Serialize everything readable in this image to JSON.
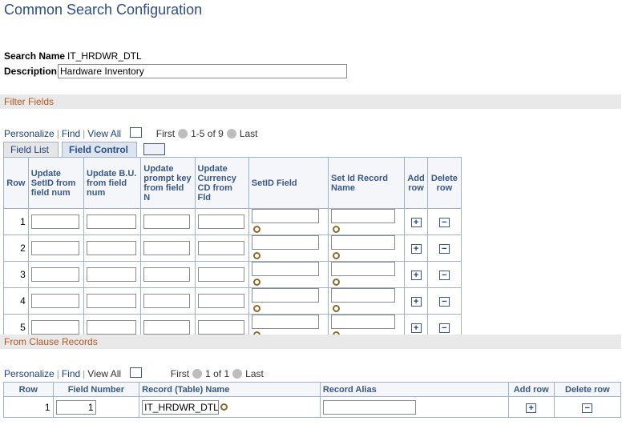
{
  "header": {
    "title": "Common Search Configuration"
  },
  "search": {
    "name_label": "Search Name",
    "name_value": "IT_HRDWR_DTL",
    "description_label": "Description",
    "description_value": "Hardware Inventory"
  },
  "filter": {
    "section_title": "Filter Fields",
    "nav": {
      "personalize": "Personalize",
      "find": "Find",
      "view_all": "View All",
      "first": "First",
      "range": "1-5 of 9",
      "last": "Last"
    },
    "tabs": [
      "Field List",
      "Field Control"
    ],
    "columns": [
      "Row",
      "Update SetID from field num",
      "Update B.U. from field num",
      "Update prompt key from field N",
      "Update Currency CD from Fld",
      "SetID Field",
      "Set Id Record Name",
      "Add row",
      "Delete row"
    ],
    "rows": [
      1,
      2,
      3,
      4,
      5
    ]
  },
  "from_clause": {
    "section_title": "From Clause Records",
    "nav": {
      "personalize": "Personalize",
      "find": "Find",
      "view_all": "View All",
      "first": "First",
      "range": "1 of 1",
      "last": "Last"
    },
    "columns": [
      "Row",
      "Field Number",
      "Record (Table) Name",
      "Record Alias",
      "Add row",
      "Delete row"
    ],
    "rows": [
      {
        "row": 1,
        "field_number": "1",
        "record": "IT_HRDWR_DTL"
      }
    ]
  }
}
